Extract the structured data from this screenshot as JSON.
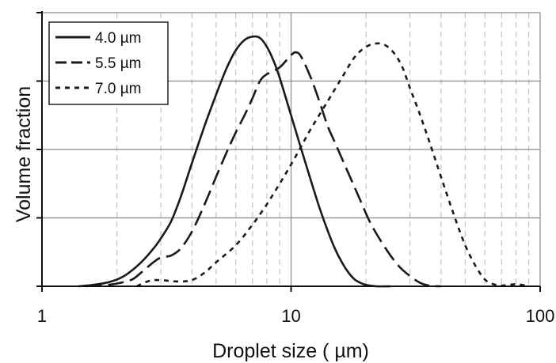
{
  "chart_data": {
    "type": "line",
    "title": "",
    "xlabel": "Droplet size (  µm)",
    "ylabel": "Volume fraction",
    "xscale": "log",
    "xlim": [
      1,
      100
    ],
    "ylim": [
      0,
      4
    ],
    "grid": {
      "x_major": "solid gray",
      "x_minor": "dashed gray",
      "y_major": "solid gray"
    },
    "x_ticks": [
      {
        "value": 1,
        "label": "1"
      },
      {
        "value": 10,
        "label": "10"
      },
      {
        "value": 100,
        "label": "100"
      }
    ],
    "legend": {
      "position": "top-left"
    },
    "series": [
      {
        "name": "4.0  µm",
        "style": "solid",
        "color": "#1a1a1a",
        "x": [
          1.4,
          1.6,
          1.8,
          2.0,
          2.2,
          2.5,
          2.8,
          3.0,
          3.3,
          3.6,
          4.0,
          4.5,
          5.0,
          5.5,
          6.0,
          6.5,
          7.0,
          7.5,
          8.0,
          8.5,
          9.0,
          10.0,
          11.0,
          12.0,
          13.0,
          14.0,
          15.0,
          16.0,
          17.0,
          18.0,
          19.0,
          20.0,
          22.0,
          25.0
        ],
        "y": [
          0.0,
          0.02,
          0.05,
          0.1,
          0.18,
          0.35,
          0.55,
          0.7,
          0.95,
          1.3,
          1.8,
          2.35,
          2.8,
          3.18,
          3.45,
          3.6,
          3.65,
          3.63,
          3.5,
          3.3,
          3.05,
          2.5,
          2.0,
          1.55,
          1.15,
          0.82,
          0.55,
          0.35,
          0.2,
          0.1,
          0.05,
          0.02,
          0.0,
          0.0
        ]
      },
      {
        "name": "5.5  µm",
        "style": "dashed",
        "color": "#1a1a1a",
        "x": [
          1.5,
          1.8,
          2.0,
          2.3,
          2.5,
          2.8,
          3.0,
          3.3,
          3.6,
          4.0,
          4.5,
          5.0,
          5.5,
          6.0,
          6.5,
          7.0,
          7.5,
          8.0,
          9.0,
          10.0,
          10.5,
          11.0,
          12.0,
          13.0,
          14.0,
          15.0,
          17.0,
          19.0,
          21.0,
          24.0,
          27.0,
          30.0,
          33.0,
          36.0,
          40.0
        ],
        "y": [
          0.0,
          0.02,
          0.04,
          0.1,
          0.2,
          0.35,
          0.42,
          0.45,
          0.55,
          0.8,
          1.2,
          1.6,
          1.95,
          2.25,
          2.5,
          2.75,
          3.0,
          3.1,
          3.2,
          3.38,
          3.42,
          3.35,
          3.05,
          2.7,
          2.35,
          2.1,
          1.65,
          1.25,
          0.9,
          0.55,
          0.3,
          0.15,
          0.05,
          0.01,
          0.0
        ]
      },
      {
        "name": "7.0  µm",
        "style": "dotted",
        "color": "#1a1a1a",
        "x": [
          2.4,
          2.7,
          3.0,
          3.5,
          4.0,
          4.5,
          5.0,
          6.0,
          7.0,
          8.0,
          9.0,
          10.0,
          11.0,
          12.0,
          14.0,
          16.0,
          18.0,
          20.0,
          22.0,
          24.0,
          26.0,
          28.0,
          30.0,
          33.0,
          36.0,
          40.0,
          45.0,
          50.0,
          55.0,
          60.0,
          65.0,
          70.0,
          80.0,
          90.0
        ],
        "y": [
          0.0,
          0.08,
          0.09,
          0.07,
          0.09,
          0.2,
          0.35,
          0.6,
          0.9,
          1.2,
          1.5,
          1.78,
          2.05,
          2.3,
          2.7,
          3.05,
          3.35,
          3.5,
          3.55,
          3.52,
          3.4,
          3.2,
          2.9,
          2.5,
          2.1,
          1.6,
          1.05,
          0.6,
          0.3,
          0.1,
          0.03,
          0.01,
          0.03,
          0.0
        ]
      }
    ]
  }
}
